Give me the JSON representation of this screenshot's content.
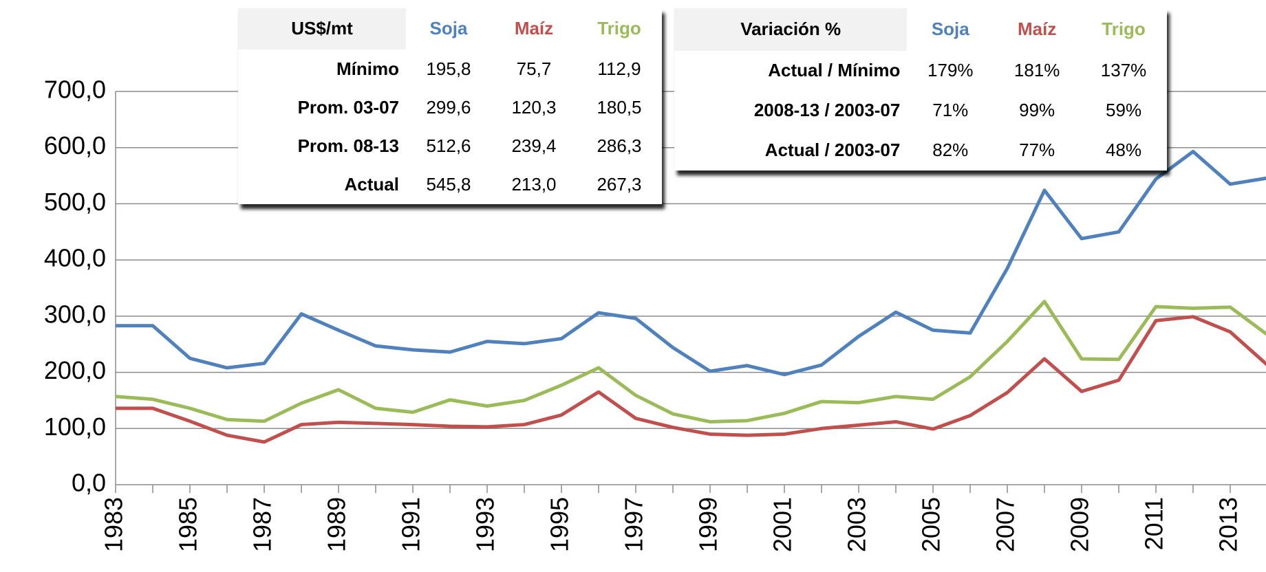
{
  "chart_data": {
    "type": "line",
    "categories": [
      "1983",
      null,
      "1985",
      null,
      "1987",
      null,
      "1989",
      null,
      "1991",
      null,
      "1993",
      null,
      "1995",
      null,
      "1997",
      null,
      "1999",
      null,
      "2001",
      null,
      "2003",
      null,
      "2005",
      null,
      "2007",
      null,
      "2009",
      null,
      "2011",
      null,
      "2013",
      null
    ],
    "series": [
      {
        "name": "Soja",
        "color": "#4f81bd",
        "values": [
          283,
          283,
          225,
          208,
          216,
          304,
          275,
          247,
          240,
          236,
          255,
          251,
          260,
          306,
          296,
          244,
          202,
          212,
          196,
          213,
          264,
          307,
          275,
          270,
          385,
          524,
          438,
          450,
          544,
          593,
          535,
          545.8
        ]
      },
      {
        "name": "Maíz",
        "color": "#c0504d",
        "values": [
          136,
          136,
          113,
          88,
          76,
          107,
          111,
          109,
          107,
          104,
          103,
          107,
          124,
          165,
          118,
          102,
          90,
          88,
          90,
          100,
          106,
          112,
          99,
          123,
          164,
          224,
          166,
          186,
          292,
          299,
          272,
          213
        ]
      },
      {
        "name": "Trigo",
        "color": "#9bbb59",
        "values": [
          157,
          152,
          136,
          116,
          113,
          145,
          169,
          136,
          129,
          151,
          140,
          150,
          177,
          208,
          159,
          126,
          112,
          114,
          127,
          148,
          146,
          157,
          152,
          192,
          255,
          326,
          224,
          223,
          317,
          314,
          316,
          267
        ]
      }
    ],
    "ylim": [
      0,
      700
    ],
    "yticks": [
      {
        "value": 0,
        "label": "0,0"
      },
      {
        "value": 100,
        "label": "100,0"
      },
      {
        "value": 200,
        "label": "200,0"
      },
      {
        "value": 300,
        "label": "300,0"
      },
      {
        "value": 400,
        "label": "400,0"
      },
      {
        "value": 500,
        "label": "500,0"
      },
      {
        "value": 600,
        "label": "600,0"
      },
      {
        "value": 700,
        "label": "700,0"
      }
    ],
    "grid": true
  },
  "table1": {
    "header": "US$/mt",
    "rows": [
      [
        "Mínimo",
        "195,8",
        "75,7",
        "112,9"
      ],
      [
        "Prom. 03-07",
        "299,6",
        "120,3",
        "180,5"
      ],
      [
        "Prom. 08-13",
        "512,6",
        "239,4",
        "286,3"
      ],
      [
        "Actual",
        "545,8",
        "213,0",
        "267,3"
      ]
    ]
  },
  "table2": {
    "header": "Variación %",
    "rows": [
      [
        "Actual / Mínimo",
        "179%",
        "181%",
        "137%"
      ],
      [
        "2008-13 / 2003-07",
        "71%",
        "99%",
        "59%"
      ],
      [
        "Actual / 2003-07",
        "82%",
        "77%",
        "48%"
      ]
    ]
  }
}
